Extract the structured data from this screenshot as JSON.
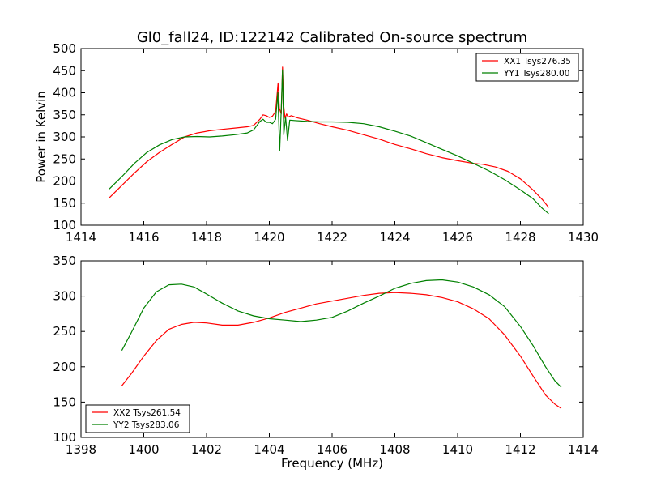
{
  "figure": {
    "title": "Gl0_fall24, ID:122142 Calibrated On-source spectrum"
  },
  "chart_data": [
    {
      "type": "line",
      "title": "Gl0_fall24, ID:122142 Calibrated On-source spectrum",
      "xlabel": "",
      "ylabel": "Power in Kelvin",
      "xlim": [
        1414,
        1430
      ],
      "ylim": [
        100,
        500
      ],
      "xticks": [
        1414,
        1416,
        1418,
        1420,
        1422,
        1424,
        1426,
        1428,
        1430
      ],
      "yticks": [
        100,
        150,
        200,
        250,
        300,
        350,
        400,
        450,
        500
      ],
      "grid": false,
      "legend_position": "top-right",
      "series": [
        {
          "name": "XX1 Tsys276.35",
          "color": "#ff0000",
          "points": [
            [
              1414.9,
              162
            ],
            [
              1415.3,
              190
            ],
            [
              1415.7,
              218
            ],
            [
              1416.1,
              244
            ],
            [
              1416.5,
              265
            ],
            [
              1416.9,
              283
            ],
            [
              1417.3,
              300
            ],
            [
              1417.7,
              309
            ],
            [
              1418.1,
              314
            ],
            [
              1418.5,
              317
            ],
            [
              1418.9,
              320
            ],
            [
              1419.3,
              323
            ],
            [
              1419.5,
              326
            ],
            [
              1419.7,
              340
            ],
            [
              1419.8,
              350
            ],
            [
              1419.9,
              348
            ],
            [
              1420.0,
              344
            ],
            [
              1420.1,
              347
            ],
            [
              1420.2,
              358
            ],
            [
              1420.28,
              422
            ],
            [
              1420.32,
              365
            ],
            [
              1420.38,
              352
            ],
            [
              1420.42,
              458
            ],
            [
              1420.46,
              370
            ],
            [
              1420.5,
              342
            ],
            [
              1420.55,
              352
            ],
            [
              1420.6,
              345
            ],
            [
              1420.7,
              348
            ],
            [
              1420.9,
              343
            ],
            [
              1421.2,
              338
            ],
            [
              1421.6,
              330
            ],
            [
              1422.0,
              323
            ],
            [
              1422.5,
              315
            ],
            [
              1423.0,
              305
            ],
            [
              1423.5,
              295
            ],
            [
              1424.0,
              283
            ],
            [
              1424.5,
              273
            ],
            [
              1425.0,
              262
            ],
            [
              1425.5,
              253
            ],
            [
              1426.0,
              246
            ],
            [
              1426.5,
              240
            ],
            [
              1426.8,
              238
            ],
            [
              1427.2,
              232
            ],
            [
              1427.6,
              222
            ],
            [
              1428.0,
              205
            ],
            [
              1428.4,
              180
            ],
            [
              1428.7,
              158
            ],
            [
              1428.9,
              140
            ]
          ]
        },
        {
          "name": "YY1 Tsys280.00",
          "color": "#008000",
          "points": [
            [
              1414.9,
              182
            ],
            [
              1415.3,
              210
            ],
            [
              1415.7,
              240
            ],
            [
              1416.1,
              265
            ],
            [
              1416.5,
              282
            ],
            [
              1416.9,
              294
            ],
            [
              1417.3,
              300
            ],
            [
              1417.7,
              301
            ],
            [
              1418.1,
              300
            ],
            [
              1418.5,
              302
            ],
            [
              1418.9,
              305
            ],
            [
              1419.3,
              309
            ],
            [
              1419.5,
              316
            ],
            [
              1419.7,
              335
            ],
            [
              1419.8,
              340
            ],
            [
              1419.9,
              333
            ],
            [
              1420.0,
              333
            ],
            [
              1420.1,
              330
            ],
            [
              1420.2,
              340
            ],
            [
              1420.27,
              400
            ],
            [
              1420.33,
              268
            ],
            [
              1420.38,
              360
            ],
            [
              1420.42,
              452
            ],
            [
              1420.46,
              305
            ],
            [
              1420.52,
              345
            ],
            [
              1420.58,
              292
            ],
            [
              1420.65,
              338
            ],
            [
              1420.8,
              337
            ],
            [
              1421.2,
              335
            ],
            [
              1421.6,
              334
            ],
            [
              1422.0,
              334
            ],
            [
              1422.5,
              333
            ],
            [
              1423.0,
              330
            ],
            [
              1423.5,
              323
            ],
            [
              1424.0,
              313
            ],
            [
              1424.5,
              302
            ],
            [
              1425.0,
              287
            ],
            [
              1425.5,
              272
            ],
            [
              1426.0,
              257
            ],
            [
              1426.5,
              240
            ],
            [
              1427.0,
              223
            ],
            [
              1427.5,
              203
            ],
            [
              1428.0,
              180
            ],
            [
              1428.4,
              160
            ],
            [
              1428.7,
              138
            ],
            [
              1428.9,
              126
            ]
          ]
        }
      ]
    },
    {
      "type": "line",
      "title": "",
      "xlabel": "Frequency (MHz)",
      "ylabel": "",
      "xlim": [
        1398,
        1414
      ],
      "ylim": [
        100,
        350
      ],
      "xticks": [
        1398,
        1400,
        1402,
        1404,
        1406,
        1408,
        1410,
        1412,
        1414
      ],
      "yticks": [
        100,
        150,
        200,
        250,
        300,
        350
      ],
      "grid": false,
      "legend_position": "bottom-left",
      "series": [
        {
          "name": "XX2 Tsys261.54",
          "color": "#ff0000",
          "points": [
            [
              1399.3,
              173
            ],
            [
              1399.6,
              190
            ],
            [
              1400.0,
              215
            ],
            [
              1400.4,
              237
            ],
            [
              1400.8,
              253
            ],
            [
              1401.2,
              260
            ],
            [
              1401.6,
              263
            ],
            [
              1402.0,
              262
            ],
            [
              1402.5,
              259
            ],
            [
              1403.0,
              259
            ],
            [
              1403.5,
              263
            ],
            [
              1404.0,
              269
            ],
            [
              1404.5,
              277
            ],
            [
              1405.0,
              283
            ],
            [
              1405.5,
              289
            ],
            [
              1406.0,
              293
            ],
            [
              1406.5,
              297
            ],
            [
              1407.0,
              301
            ],
            [
              1407.5,
              304
            ],
            [
              1408.0,
              305
            ],
            [
              1408.5,
              304
            ],
            [
              1409.0,
              302
            ],
            [
              1409.5,
              298
            ],
            [
              1410.0,
              292
            ],
            [
              1410.5,
              282
            ],
            [
              1411.0,
              268
            ],
            [
              1411.5,
              245
            ],
            [
              1412.0,
              215
            ],
            [
              1412.4,
              187
            ],
            [
              1412.8,
              160
            ],
            [
              1413.1,
              147
            ],
            [
              1413.3,
              141
            ]
          ]
        },
        {
          "name": "YY2 Tsys283.06",
          "color": "#008000",
          "points": [
            [
              1399.3,
              223
            ],
            [
              1399.6,
              248
            ],
            [
              1400.0,
              283
            ],
            [
              1400.4,
              306
            ],
            [
              1400.8,
              316
            ],
            [
              1401.2,
              317
            ],
            [
              1401.6,
              313
            ],
            [
              1402.0,
              303
            ],
            [
              1402.5,
              290
            ],
            [
              1403.0,
              279
            ],
            [
              1403.5,
              272
            ],
            [
              1404.0,
              268
            ],
            [
              1404.5,
              266
            ],
            [
              1405.0,
              264
            ],
            [
              1405.5,
              266
            ],
            [
              1406.0,
              270
            ],
            [
              1406.5,
              279
            ],
            [
              1407.0,
              290
            ],
            [
              1407.5,
              300
            ],
            [
              1408.0,
              311
            ],
            [
              1408.5,
              318
            ],
            [
              1409.0,
              322
            ],
            [
              1409.5,
              323
            ],
            [
              1410.0,
              320
            ],
            [
              1410.5,
              313
            ],
            [
              1411.0,
              302
            ],
            [
              1411.5,
              285
            ],
            [
              1412.0,
              257
            ],
            [
              1412.4,
              230
            ],
            [
              1412.8,
              200
            ],
            [
              1413.1,
              180
            ],
            [
              1413.3,
              171
            ]
          ]
        }
      ]
    }
  ]
}
